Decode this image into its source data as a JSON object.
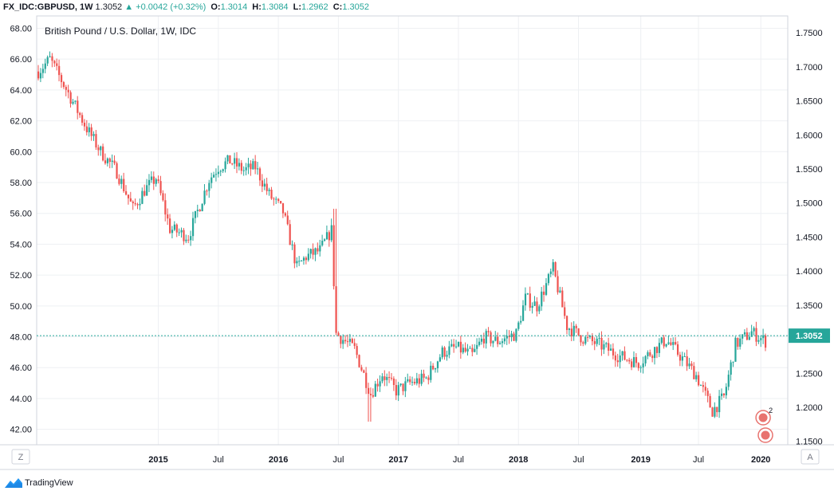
{
  "header": {
    "symbol": "FX_IDC:GBPUSD, 1W",
    "last": "1.3052",
    "change": "+0.0042 (+0.32%)",
    "o_label": "O:",
    "o_value": "1.3014",
    "h_label": "H:",
    "h_value": "1.3084",
    "l_label": "L:",
    "l_value": "1.2962",
    "c_label": "C:",
    "c_value": "1.3052",
    "up_arrow": "▲"
  },
  "legend_title": "British Pound / U.S. Dollar, 1W, IDC",
  "left_axis": {
    "min": 41,
    "max": 68.8,
    "ticks": [
      "68.00",
      "66.00",
      "64.00",
      "62.00",
      "60.00",
      "58.00",
      "56.00",
      "54.00",
      "52.00",
      "50.00",
      "48.00",
      "46.00",
      "44.00",
      "42.00"
    ]
  },
  "right_axis": {
    "ticks": [
      "1.7500",
      "1.7000",
      "1.6500",
      "1.6000",
      "1.5500",
      "1.5000",
      "1.4500",
      "1.4000",
      "1.3500",
      "1.3000",
      "1.2500",
      "1.2000",
      "1.1500"
    ]
  },
  "last_price_label": "1.3052",
  "time_axis": [
    "2015",
    "Jul",
    "2016",
    "Jul",
    "2017",
    "Jul",
    "2018",
    "Jul",
    "2019",
    "Jul",
    "2020"
  ],
  "buttons": {
    "zoom": "Z",
    "auto": "A"
  },
  "event_badge_count": "2",
  "colors": {
    "up": "#26a69a",
    "down": "#ef5350",
    "grid": "#eef0f3",
    "border": "#d1d4dc",
    "last_line": "#26a69a"
  },
  "footer": {
    "brand": "TradingView"
  },
  "chart_data": {
    "type": "candlestick",
    "title": "British Pound / U.S. Dollar, 1W, IDC",
    "y_left_range": [
      41,
      68.8
    ],
    "y_right_range": [
      1.145,
      1.7747
    ],
    "x_range": [
      "2014-01-06",
      "2020-01-20"
    ],
    "grid": true,
    "path_close": [
      [
        "2014-01-06",
        65.2
      ],
      [
        "2014-02-10",
        66.0
      ],
      [
        "2014-04-07",
        63.8
      ],
      [
        "2014-06-02",
        61.5
      ],
      [
        "2014-07-14",
        60.0
      ],
      [
        "2014-09-01",
        58.7
      ],
      [
        "2014-10-20",
        56.3
      ],
      [
        "2014-11-24",
        57.5
      ],
      [
        "2014-12-29",
        58.3
      ],
      [
        "2015-02-09",
        55.0
      ],
      [
        "2015-04-06",
        54.5
      ],
      [
        "2015-06-08",
        58.2
      ],
      [
        "2015-07-06",
        59.0
      ],
      [
        "2015-08-10",
        59.4
      ],
      [
        "2015-09-21",
        58.8
      ],
      [
        "2015-10-26",
        59.0
      ],
      [
        "2015-12-07",
        57.2
      ],
      [
        "2016-01-18",
        56.1
      ],
      [
        "2016-02-29",
        52.5
      ],
      [
        "2016-03-28",
        53.2
      ],
      [
        "2016-05-09",
        53.6
      ],
      [
        "2016-06-13",
        54.9
      ],
      [
        "2016-06-27",
        48.2
      ],
      [
        "2016-07-25",
        47.7
      ],
      [
        "2016-08-22",
        47.2
      ],
      [
        "2016-10-10",
        44.3
      ],
      [
        "2016-11-14",
        45.6
      ],
      [
        "2016-12-26",
        44.5
      ],
      [
        "2017-02-06",
        45.0
      ],
      [
        "2017-03-27",
        45.3
      ],
      [
        "2017-05-15",
        47.0
      ],
      [
        "2017-06-26",
        47.3
      ],
      [
        "2017-08-14",
        46.8
      ],
      [
        "2017-09-18",
        48.0
      ],
      [
        "2017-10-30",
        47.7
      ],
      [
        "2017-12-25",
        48.2
      ],
      [
        "2018-01-22",
        50.5
      ],
      [
        "2018-02-26",
        50.0
      ],
      [
        "2018-04-16",
        52.4
      ],
      [
        "2018-05-28",
        48.7
      ],
      [
        "2018-07-16",
        47.9
      ],
      [
        "2018-09-03",
        47.5
      ],
      [
        "2018-10-29",
        46.8
      ],
      [
        "2018-12-31",
        46.3
      ],
      [
        "2019-02-18",
        47.2
      ],
      [
        "2019-03-25",
        47.8
      ],
      [
        "2019-05-13",
        46.6
      ],
      [
        "2019-06-24",
        45.5
      ],
      [
        "2019-08-12",
        43.2
      ],
      [
        "2019-09-16",
        44.1
      ],
      [
        "2019-10-21",
        47.5
      ],
      [
        "2019-12-09",
        48.3
      ],
      [
        "2020-01-20",
        47.7
      ]
    ],
    "last_price": 1.3052,
    "events": [
      {
        "kind": "uk-flag",
        "count": "2",
        "date": "2020-01-13"
      },
      {
        "kind": "us-flag",
        "date": "2020-01-20"
      }
    ]
  }
}
